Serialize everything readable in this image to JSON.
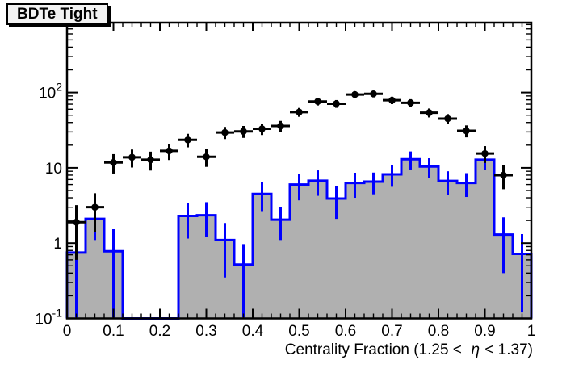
{
  "title": "BDTe Tight",
  "x_axis": {
    "title_prefix": "Centrality Fraction (1.25 <  ",
    "title_eta": "η",
    "title_suffix": " < 1.37)",
    "tick_values": [
      0,
      0.1,
      0.2,
      0.3,
      0.4,
      0.5,
      0.6,
      0.7,
      0.8,
      0.9,
      1
    ],
    "tick_labels": [
      "0",
      "0.1",
      "0.2",
      "0.3",
      "0.4",
      "0.5",
      "0.6",
      "0.7",
      "0.8",
      "0.9",
      "1"
    ]
  },
  "y_axis": {
    "scale": "log",
    "tick_values": [
      0.1,
      1,
      10,
      100
    ],
    "tick_labels": [
      {
        "base": "10",
        "exp": "-1"
      },
      {
        "base": "1",
        "exp": ""
      },
      {
        "base": "10",
        "exp": ""
      },
      {
        "base": "10",
        "exp": "2"
      }
    ]
  },
  "colors": {
    "frame": "#000000",
    "hist_line": "#0000ff",
    "hist_fill": "#b0b0b0",
    "marker": "#000000",
    "title_box_bg": "#f2f2f2"
  },
  "chart_data": {
    "type": "bar",
    "subtype": "log-histogram-with-data-points",
    "title": "BDTe Tight",
    "xlabel": "Centrality Fraction (1.25 <  η < 1.37)",
    "ylabel": "",
    "x_range": [
      0,
      1
    ],
    "y_range": [
      0.1,
      850
    ],
    "y_scale": "log",
    "grid": false,
    "legend": "none",
    "series": [
      {
        "name": "black_data_points",
        "type": "scatter",
        "marker": "filled-circle",
        "color": "#000000",
        "xerr_halfwidth": 0.02,
        "x": [
          0.02,
          0.06,
          0.1,
          0.14,
          0.18,
          0.22,
          0.26,
          0.3,
          0.34,
          0.38,
          0.42,
          0.46,
          0.5,
          0.54,
          0.58,
          0.62,
          0.66,
          0.7,
          0.74,
          0.78,
          0.82,
          0.86,
          0.9,
          0.94
        ],
        "y": [
          1.9,
          3.0,
          11.8,
          13.8,
          12.8,
          16.8,
          23.5,
          14.0,
          29.5,
          30.5,
          33,
          36,
          55,
          76,
          71,
          94,
          96,
          79,
          73,
          54,
          45,
          31,
          15.5,
          8.0
        ],
        "yerr": [
          1.3,
          1.6,
          3.4,
          3.7,
          3.6,
          4.1,
          4.8,
          3.7,
          5.4,
          5.5,
          5.7,
          6.0,
          7.4,
          8.7,
          8.4,
          9.7,
          9.8,
          8.9,
          8.5,
          7.3,
          6.7,
          5.6,
          3.9,
          2.8
        ]
      },
      {
        "name": "gray_filled_histogram",
        "type": "step-histogram",
        "line_color": "#0000ff",
        "fill_color": "#b0b0b0",
        "bin_start": 0,
        "bin_width": 0.04,
        "values": [
          0.75,
          2.1,
          0.78,
          0,
          0,
          0,
          2.3,
          2.35,
          1.1,
          0.52,
          4.5,
          2.05,
          6.0,
          6.75,
          3.9,
          6.3,
          6.55,
          8.2,
          13.0,
          10.4,
          6.7,
          6.3,
          12.8,
          1.3,
          0.72
        ],
        "errors": [
          0.7,
          1.0,
          0.75,
          0,
          0,
          0,
          1.15,
          1.15,
          0.75,
          0.45,
          1.9,
          0.95,
          2.3,
          2.5,
          1.8,
          2.3,
          2.1,
          2.6,
          3.5,
          3.0,
          2.3,
          2.2,
          3.4,
          0.9,
          0.6
        ]
      }
    ]
  }
}
